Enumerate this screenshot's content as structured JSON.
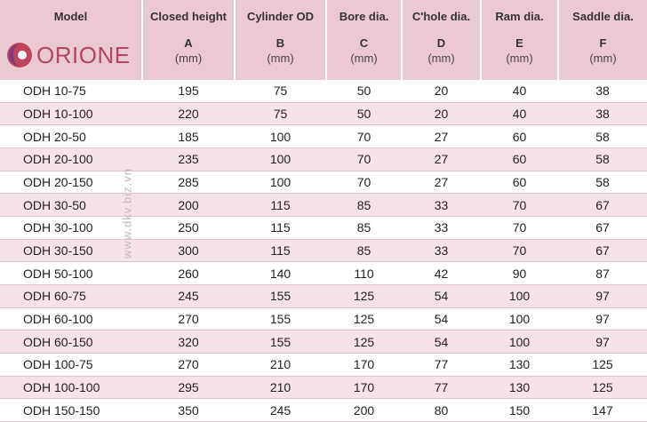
{
  "table": {
    "logo": "ORIONE",
    "watermark": "www.dkv.biz.vn",
    "columns": [
      {
        "name": "Model"
      },
      {
        "name": "Closed height",
        "letter": "A",
        "unit": "(mm)"
      },
      {
        "name": "Cylinder OD",
        "letter": "B",
        "unit": "(mm)"
      },
      {
        "name": "Bore dia.",
        "letter": "C",
        "unit": "(mm)"
      },
      {
        "name": "C'hole dia.",
        "letter": "D",
        "unit": "(mm)"
      },
      {
        "name": "Ram dia.",
        "letter": "E",
        "unit": "(mm)"
      },
      {
        "name": "Saddle dia.",
        "letter": "F",
        "unit": "(mm)"
      }
    ],
    "rows": [
      [
        "ODH 10-75",
        195,
        75,
        50,
        20,
        40,
        38
      ],
      [
        "ODH 10-100",
        220,
        75,
        50,
        20,
        40,
        38
      ],
      [
        "ODH 20-50",
        185,
        100,
        70,
        27,
        60,
        58
      ],
      [
        "ODH 20-100",
        235,
        100,
        70,
        27,
        60,
        58
      ],
      [
        "ODH 20-150",
        285,
        100,
        70,
        27,
        60,
        58
      ],
      [
        "ODH 30-50",
        200,
        115,
        85,
        33,
        70,
        67
      ],
      [
        "ODH 30-100",
        250,
        115,
        85,
        33,
        70,
        67
      ],
      [
        "ODH 30-150",
        300,
        115,
        85,
        33,
        70,
        67
      ],
      [
        "ODH 50-100",
        260,
        140,
        110,
        42,
        90,
        87
      ],
      [
        "ODH 60-75",
        245,
        155,
        125,
        54,
        100,
        97
      ],
      [
        "ODH 60-100",
        270,
        155,
        125,
        54,
        100,
        97
      ],
      [
        "ODH 60-150",
        320,
        155,
        125,
        54,
        100,
        97
      ],
      [
        "ODH 100-75",
        270,
        210,
        170,
        77,
        130,
        125
      ],
      [
        "ODH 100-100",
        295,
        210,
        170,
        77,
        130,
        125
      ],
      [
        "ODH 150-150",
        350,
        245,
        200,
        80,
        150,
        147
      ]
    ]
  }
}
